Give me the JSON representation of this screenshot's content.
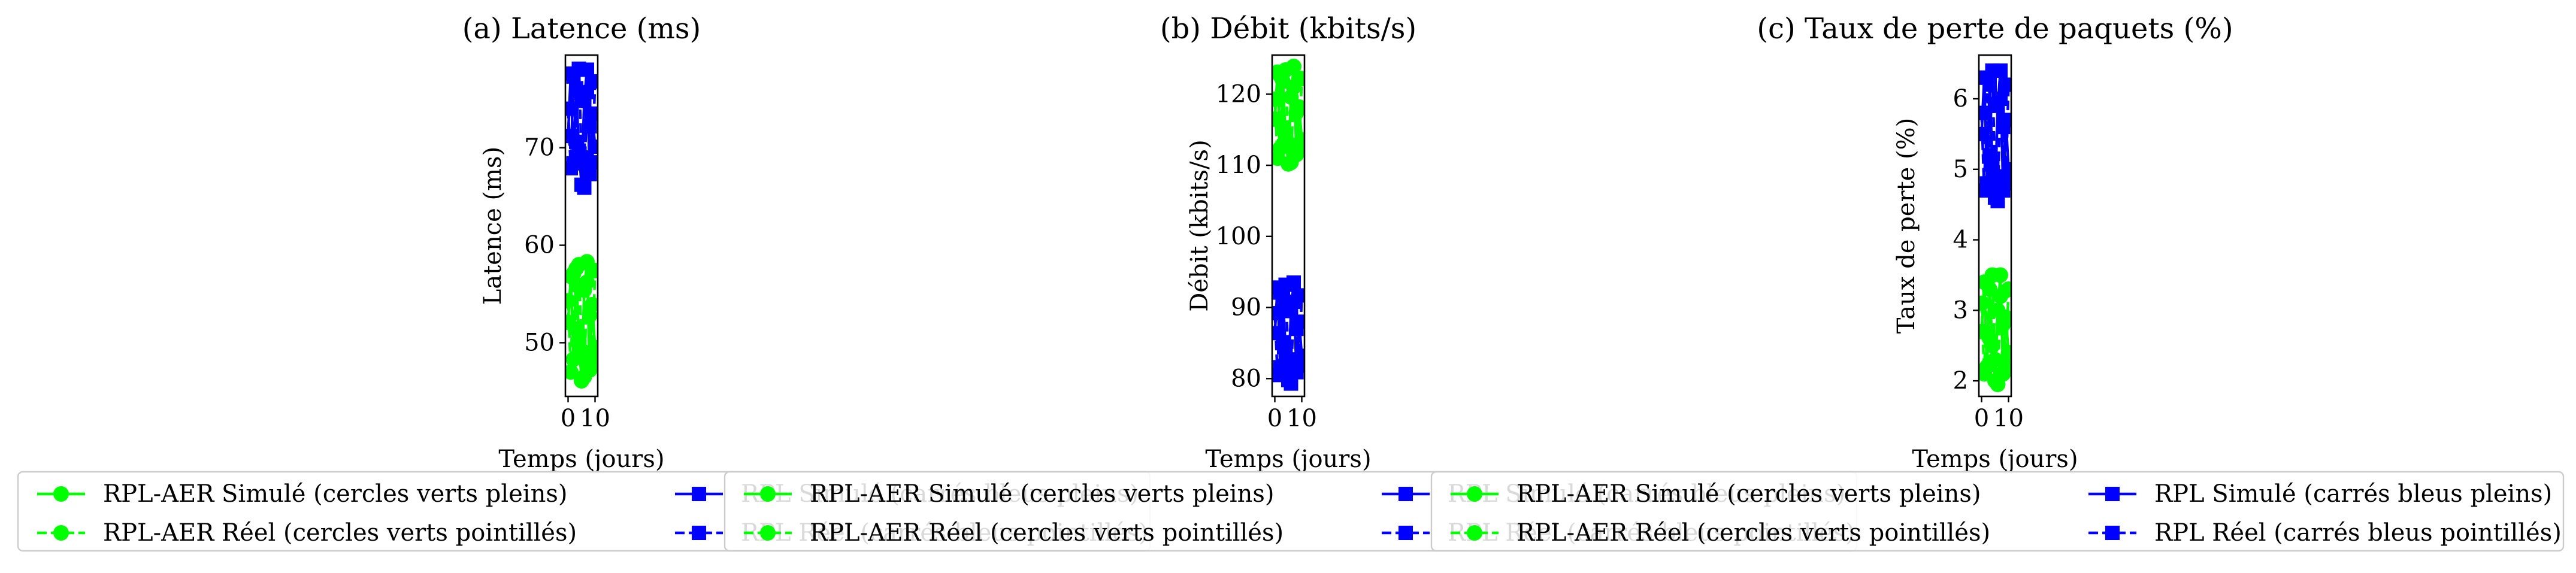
{
  "figure": {
    "legend_entries": [
      {
        "label": "RPL-AER Simulé (cercles verts pleins)",
        "color": "#00ff00",
        "marker": "circle",
        "line": "solid"
      },
      {
        "label": "RPL-AER Réel (cercles verts pointillés)",
        "color": "#00ff00",
        "marker": "circle",
        "line": "dashed"
      },
      {
        "label": "RPL Simulé (carrés bleus pleins)",
        "color": "#0000ff",
        "marker": "square",
        "line": "solid"
      },
      {
        "label": "RPL Réel (carrés bleus pointillés)",
        "color": "#0000ff",
        "marker": "square",
        "line": "dashed"
      }
    ]
  },
  "chart_data": [
    {
      "type": "line",
      "title": "(a) Latence (ms)",
      "xlabel": "Temps (jours)",
      "ylabel": "Latence (ms)",
      "xlim": [
        -1,
        11
      ],
      "ylim": [
        44.5,
        79.5
      ],
      "xticks": [
        0,
        10
      ],
      "xtick_labels": [
        "0",
        "10"
      ],
      "yticks": [
        50,
        60,
        70
      ],
      "ytick_labels": [
        "50",
        "60",
        "70"
      ],
      "grid": false,
      "legend_position": "below",
      "x": [
        0,
        1,
        2,
        3,
        4,
        5,
        6,
        7,
        8,
        9,
        10
      ],
      "series": [
        {
          "name": "RPL-AER Simulé (cercles verts pleins)",
          "color": "#00ff00",
          "marker": "circle",
          "line": "solid",
          "values": [
            52.1,
            56.8,
            48.3,
            57.6,
            50.2,
            46.1,
            55.4,
            58.3,
            47.2,
            53.9,
            49.5
          ]
        },
        {
          "name": "RPL-AER Réel (cercles verts pointillés)",
          "color": "#00ff00",
          "marker": "circle",
          "line": "dashed",
          "values": [
            54.3,
            47.0,
            57.1,
            51.4,
            58.0,
            49.2,
            46.5,
            56.2,
            52.8,
            48.1,
            57.4
          ]
        },
        {
          "name": "RPL Simulé (carrés bleus pleins)",
          "color": "#0000ff",
          "marker": "square",
          "line": "solid",
          "values": [
            71.2,
            77.6,
            68.4,
            76.1,
            69.7,
            66.2,
            74.8,
            78.0,
            67.3,
            73.5,
            70.1
          ]
        },
        {
          "name": "RPL Réel (carrés bleus pointillés)",
          "color": "#0000ff",
          "marker": "square",
          "line": "dashed",
          "values": [
            74.0,
            67.9,
            77.3,
            70.6,
            78.1,
            69.0,
            65.9,
            75.7,
            72.2,
            68.5,
            76.8
          ]
        }
      ]
    },
    {
      "type": "line",
      "title": "(b) Débit (kbits/s)",
      "xlabel": "Temps (jours)",
      "ylabel": "Débit (kbits/s)",
      "xlim": [
        -1,
        11
      ],
      "ylim": [
        77.5,
        125.5
      ],
      "xticks": [
        0,
        10
      ],
      "xtick_labels": [
        "0",
        "10"
      ],
      "yticks": [
        80,
        90,
        100,
        110,
        120
      ],
      "ytick_labels": [
        "80",
        "90",
        "100",
        "110",
        "120"
      ],
      "grid": false,
      "legend_position": "below",
      "x": [
        0,
        1,
        2,
        3,
        4,
        5,
        6,
        7,
        8,
        9,
        10
      ],
      "series": [
        {
          "name": "RPL-AER Simulé (cercles verts pleins)",
          "color": "#00ff00",
          "marker": "circle",
          "line": "solid",
          "values": [
            116.5,
            123.1,
            112.4,
            121.8,
            114.0,
            110.2,
            119.6,
            123.9,
            111.5,
            118.2,
            113.6
          ]
        },
        {
          "name": "RPL-AER Réel (cercles verts pointillés)",
          "color": "#00ff00",
          "marker": "circle",
          "line": "dashed",
          "values": [
            119.3,
            111.0,
            122.6,
            115.2,
            123.4,
            113.1,
            110.4,
            121.0,
            117.4,
            112.2,
            122.2
          ]
        },
        {
          "name": "RPL Simulé (carrés bleus pleins)",
          "color": "#0000ff",
          "marker": "square",
          "line": "solid",
          "values": [
            86.4,
            92.8,
            81.6,
            91.4,
            84.0,
            79.8,
            89.5,
            93.5,
            80.9,
            88.0,
            83.2
          ]
        },
        {
          "name": "RPL Réel (carrés bleus pointillés)",
          "color": "#0000ff",
          "marker": "square",
          "line": "dashed",
          "values": [
            89.2,
            80.5,
            92.1,
            85.1,
            93.2,
            82.7,
            79.3,
            90.8,
            87.0,
            81.8,
            91.7
          ]
        }
      ]
    },
    {
      "type": "line",
      "title": "(c) Taux de perte de paquets (%)",
      "xlabel": "Temps (jours)",
      "ylabel": "Taux de perte (%)",
      "xlim": [
        -1,
        11
      ],
      "ylim": [
        1.78,
        6.62
      ],
      "xticks": [
        0,
        10
      ],
      "xtick_labels": [
        "0",
        "10"
      ],
      "yticks": [
        2,
        3,
        4,
        5,
        6
      ],
      "ytick_labels": [
        "2",
        "3",
        "4",
        "5",
        "6"
      ],
      "grid": false,
      "legend_position": "below",
      "x": [
        0,
        1,
        2,
        3,
        4,
        5,
        6,
        7,
        8,
        9,
        10
      ],
      "series": [
        {
          "name": "RPL-AER Simulé (cercles verts pleins)",
          "color": "#00ff00",
          "marker": "circle",
          "line": "solid",
          "values": [
            2.7,
            3.4,
            2.2,
            3.3,
            2.5,
            2.0,
            3.0,
            3.5,
            2.1,
            2.9,
            2.4
          ]
        },
        {
          "name": "RPL-AER Réel (cercles verts pointillés)",
          "color": "#00ff00",
          "marker": "circle",
          "line": "dashed",
          "values": [
            3.1,
            2.1,
            3.4,
            2.6,
            3.5,
            2.3,
            1.95,
            3.2,
            2.8,
            2.2,
            3.3
          ]
        },
        {
          "name": "RPL Simulé (carrés bleus pleins)",
          "color": "#0000ff",
          "marker": "square",
          "line": "solid",
          "values": [
            5.5,
            6.3,
            4.8,
            6.2,
            5.1,
            4.6,
            5.9,
            6.4,
            4.7,
            5.7,
            5.0
          ]
        },
        {
          "name": "RPL Réel (carrés bleus pointillés)",
          "color": "#0000ff",
          "marker": "square",
          "line": "dashed",
          "values": [
            5.8,
            4.7,
            6.3,
            5.2,
            6.4,
            4.9,
            4.55,
            6.0,
            5.6,
            4.8,
            6.2
          ]
        }
      ]
    }
  ]
}
